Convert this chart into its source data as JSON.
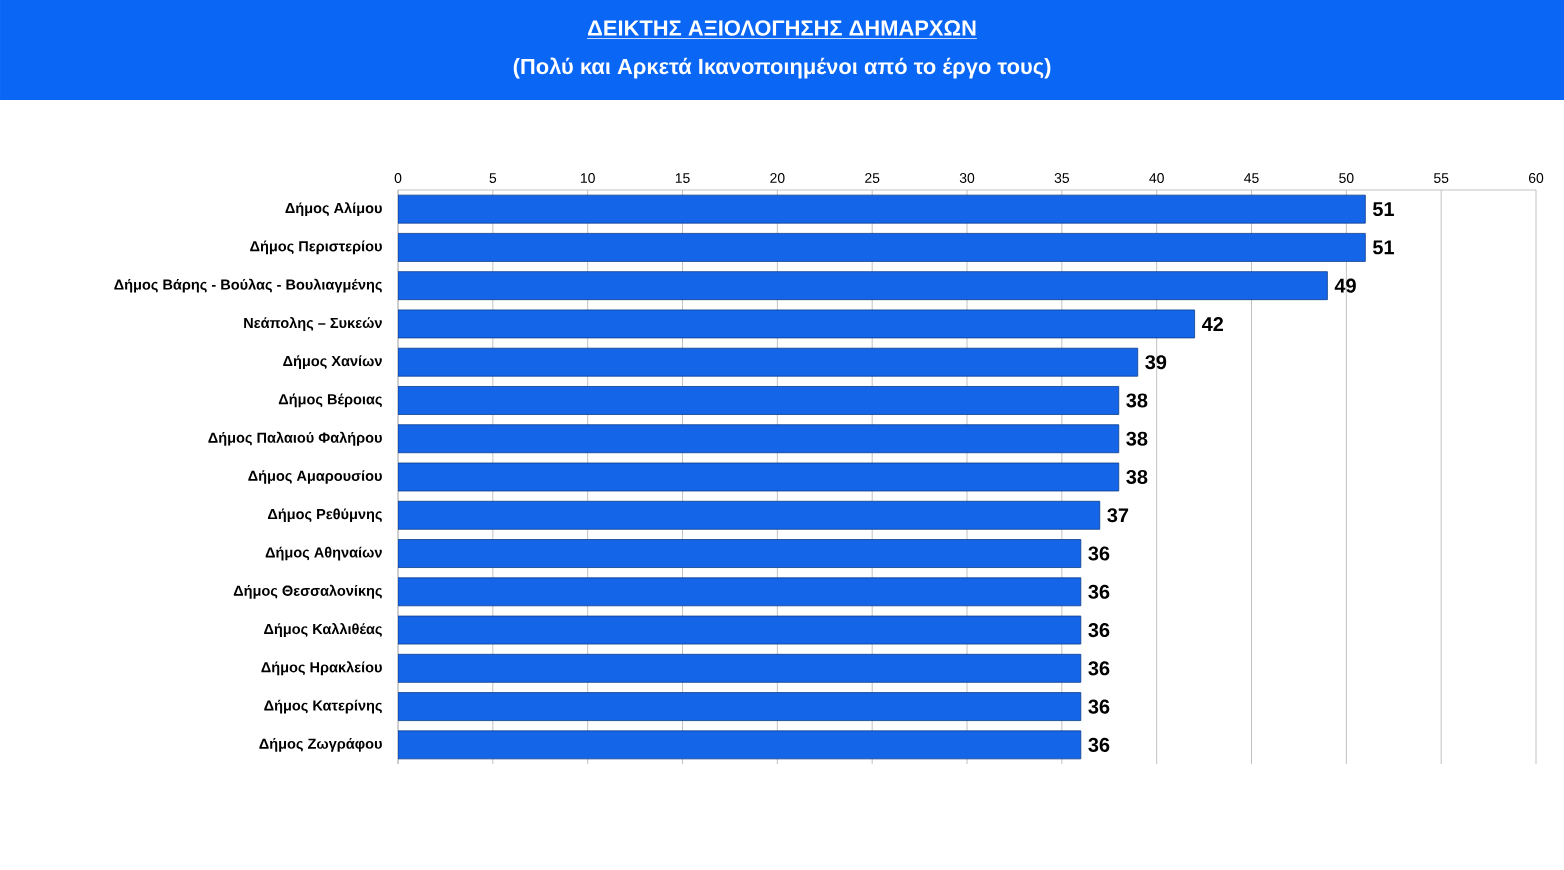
{
  "chart_data": {
    "type": "bar",
    "orientation": "horizontal",
    "title": "ΔΕΙΚΤΗΣ ΑΞΙΟΛΟΓΗΣΗΣ ΔΗΜΑΡΧΩΝ",
    "subtitle": "(Πολύ και Αρκετά Ικανοποιημένοι από το έργο τους)",
    "categories": [
      "Δήμος Αλίμου",
      "Δήμος Περιστερίου",
      "Δήμος Βάρης - Βούλας - Βουλιαγμένης",
      "Νεάπολης – Συκεών",
      "Δήμος Χανίων",
      "Δήμος Βέροιας",
      "Δήμος Παλαιού Φαλήρου",
      "Δήμος Αμαρουσίου",
      "Δήμος Ρεθύμνης",
      "Δήμος Αθηναίων",
      "Δήμος Θεσσαλονίκης",
      "Δήμος Καλλιθέας",
      "Δήμος Ηρακλείου",
      "Δήμος Κατερίνης",
      "Δήμος Ζωγράφου"
    ],
    "values": [
      51,
      51,
      49,
      42,
      39,
      38,
      38,
      38,
      37,
      36,
      36,
      36,
      36,
      36,
      36
    ],
    "color": "#1565e8",
    "xlim": [
      0,
      60
    ],
    "xticks": [
      0,
      5,
      10,
      15,
      20,
      25,
      30,
      35,
      40,
      45,
      50,
      55,
      60
    ],
    "grid": "x",
    "data_labels": true
  }
}
